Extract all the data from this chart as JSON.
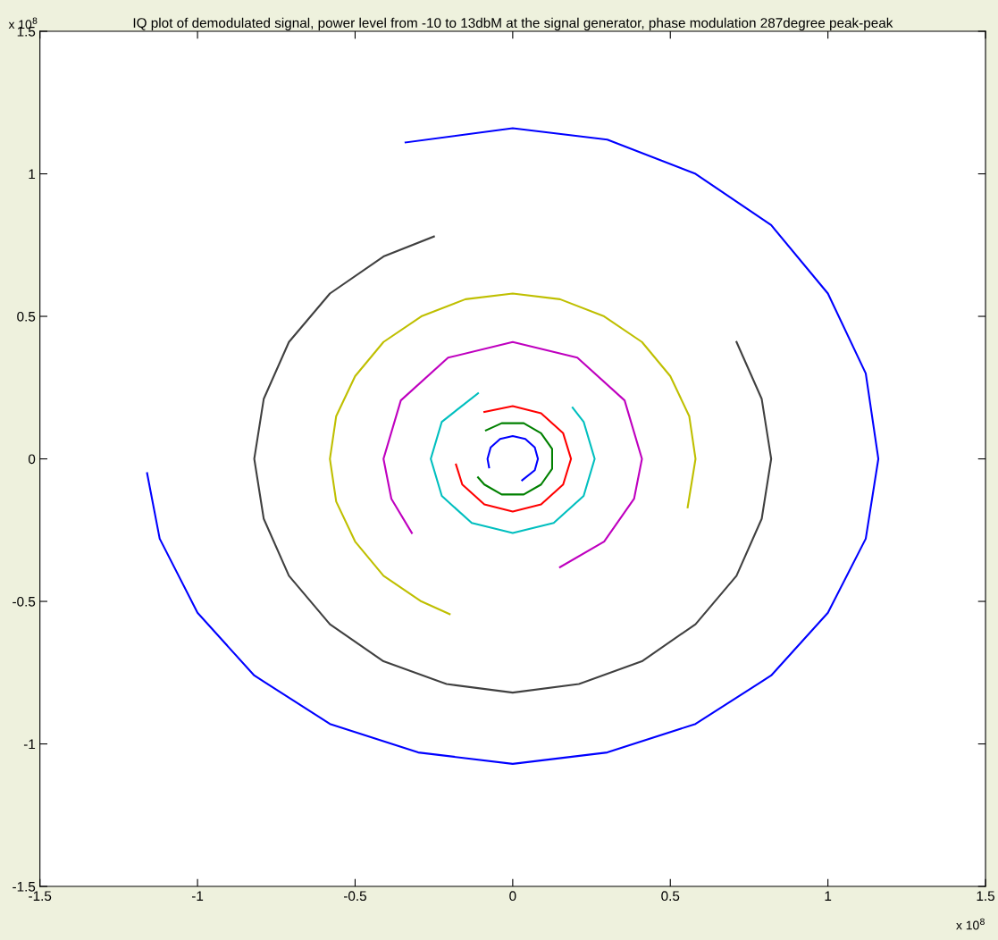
{
  "chart_data": {
    "type": "line",
    "title": "IQ plot of demodulated signal, power level from -10 to 13dbM at the signal generator, phase modulation 287degree peak-peak",
    "annotations": [
      "x 10$^{8}$",
      "x 10$^{8}$"
    ],
    "xlim": [
      -1.5,
      1.5
    ],
    "ylim": [
      -1.5,
      1.5
    ],
    "xticks": [
      -1.5,
      -1,
      -0.5,
      0,
      0.5,
      1,
      1.5
    ],
    "yticks": [
      -1.5,
      -1,
      -0.5,
      0,
      0.5,
      1,
      1.5
    ],
    "grid": false,
    "legend": false,
    "marker": "none",
    "line_style": "solid",
    "series": [
      {
        "color": "#0000ff",
        "x": [
          -0.34,
          0,
          0.3,
          0.58,
          0.82,
          1.0,
          1.12,
          1.16,
          1.12,
          1.0,
          0.82,
          0.58,
          0.3,
          0,
          -0.3,
          -0.58,
          -0.82,
          -1.0,
          -1.12,
          -1.16
        ],
        "values": [
          1.11,
          1.16,
          1.12,
          1.0,
          0.82,
          0.58,
          0.3,
          0,
          -0.28,
          -0.54,
          -0.76,
          -0.93,
          -1.03,
          -1.07,
          -1.03,
          -0.93,
          -0.76,
          -0.54,
          -0.28,
          -0.05
        ]
      },
      {
        "color": "#404040",
        "x": [
          -0.25,
          -0.41,
          -0.58,
          -0.71,
          -0.79,
          -0.82,
          -0.79,
          -0.71,
          -0.58,
          -0.41,
          -0.21,
          0,
          0.21,
          0.41,
          0.58,
          0.71,
          0.79,
          0.82,
          0.79,
          0.71
        ],
        "values": [
          0.78,
          0.71,
          0.58,
          0.41,
          0.21,
          0,
          -0.21,
          -0.41,
          -0.58,
          -0.71,
          -0.79,
          -0.82,
          -0.79,
          -0.71,
          -0.58,
          -0.41,
          -0.21,
          0,
          0.21,
          0.41
        ]
      },
      {
        "color": "#bfbf00",
        "x": [
          0.555,
          0.58,
          0.56,
          0.5,
          0.41,
          0.29,
          0.15,
          0,
          -0.15,
          -0.29,
          -0.41,
          -0.5,
          -0.56,
          -0.58,
          -0.56,
          -0.5,
          -0.41,
          -0.29,
          -0.2
        ],
        "values": [
          -0.17,
          0,
          0.15,
          0.29,
          0.41,
          0.5,
          0.56,
          0.58,
          0.56,
          0.5,
          0.41,
          0.29,
          0.15,
          0,
          -0.15,
          -0.29,
          -0.41,
          -0.5,
          -0.545
        ]
      },
      {
        "color": "#bf00bf",
        "x": [
          0.15,
          0.29,
          0.385,
          0.41,
          0.355,
          0.205,
          0,
          -0.205,
          -0.355,
          -0.41,
          -0.385,
          -0.32
        ],
        "values": [
          -0.38,
          -0.29,
          -0.14,
          0,
          0.205,
          0.355,
          0.41,
          0.355,
          0.205,
          0,
          -0.14,
          -0.26
        ]
      },
      {
        "color": "#00bfbf",
        "x": [
          -0.11,
          -0.225,
          -0.26,
          -0.225,
          -0.13,
          0,
          0.13,
          0.225,
          0.26,
          0.225,
          0.19
        ],
        "values": [
          0.23,
          0.13,
          0,
          -0.13,
          -0.225,
          -0.26,
          -0.225,
          -0.13,
          0,
          0.13,
          0.18
        ]
      },
      {
        "color": "#ff0000",
        "x": [
          -0.09,
          0,
          0.09,
          0.16,
          0.185,
          0.16,
          0.09,
          0,
          -0.09,
          -0.16,
          -0.18
        ],
        "values": [
          0.165,
          0.185,
          0.16,
          0.09,
          0,
          -0.09,
          -0.16,
          -0.185,
          -0.16,
          -0.09,
          -0.02
        ]
      },
      {
        "color": "#008000",
        "x": [
          -0.085,
          -0.035,
          0.035,
          0.09,
          0.125,
          0.125,
          0.09,
          0.035,
          -0.035,
          -0.09,
          -0.11
        ],
        "values": [
          0.1,
          0.125,
          0.125,
          0.09,
          0.035,
          -0.035,
          -0.09,
          -0.125,
          -0.125,
          -0.09,
          -0.065
        ]
      },
      {
        "color": "#0000ff",
        "x": [
          -0.075,
          -0.08,
          -0.07,
          -0.04,
          0,
          0.04,
          0.07,
          0.08,
          0.07,
          0.03
        ],
        "values": [
          -0.03,
          0,
          0.04,
          0.07,
          0.08,
          0.07,
          0.04,
          0,
          -0.04,
          -0.075
        ]
      }
    ]
  }
}
